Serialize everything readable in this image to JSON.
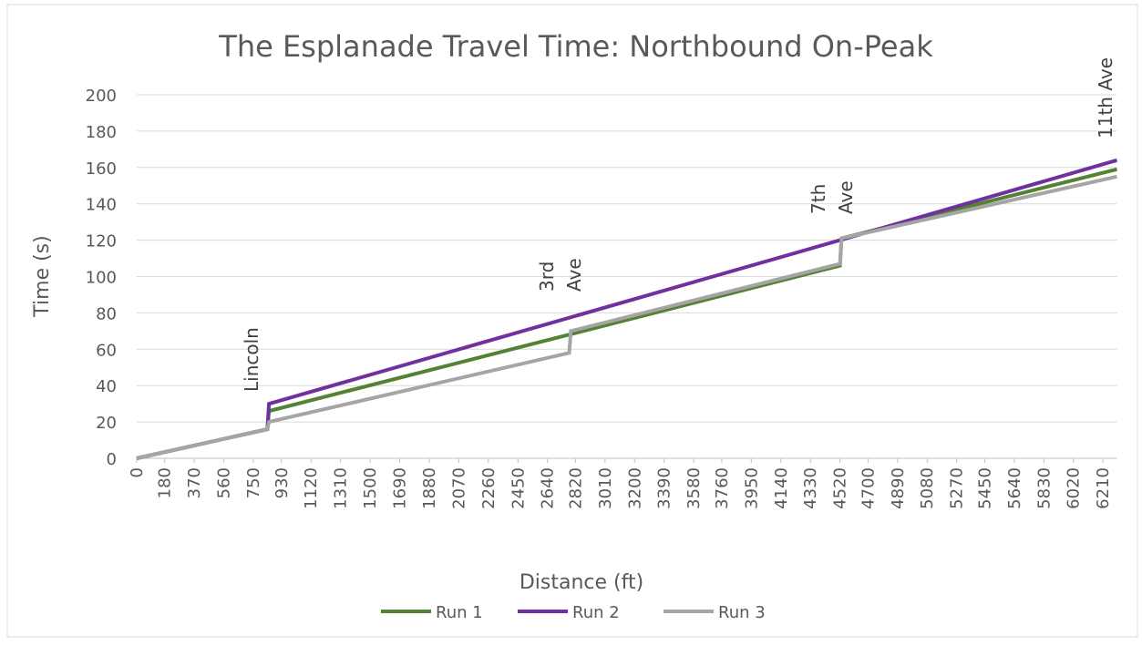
{
  "chart_data": {
    "type": "line",
    "title": "The Esplanade Travel Time: Northbound On-Peak",
    "xlabel": "Distance (ft)",
    "ylabel": "Time (s)",
    "xlim": [
      0,
      6300
    ],
    "ylim": [
      0,
      200
    ],
    "xticks": [
      0,
      180,
      370,
      560,
      750,
      930,
      1120,
      1310,
      1500,
      1690,
      1880,
      2070,
      2260,
      2450,
      2640,
      2820,
      3010,
      3200,
      3390,
      3580,
      3760,
      3950,
      4140,
      4330,
      4520,
      4700,
      4890,
      5080,
      5270,
      5450,
      5640,
      5830,
      6020,
      6210
    ],
    "yticks": [
      0,
      20,
      40,
      60,
      80,
      100,
      120,
      140,
      160,
      180,
      200
    ],
    "grid": true,
    "legend": "bottom",
    "series": [
      {
        "name": "Run 1",
        "color": "#548235",
        "x": [
          0,
          840,
          850,
          4520,
          4530,
          6300
        ],
        "values": [
          0,
          16,
          26,
          106,
          121,
          159
        ]
      },
      {
        "name": "Run 2",
        "color": "#7030a0",
        "x": [
          0,
          840,
          850,
          4520,
          6300
        ],
        "values": [
          0,
          16,
          30,
          120,
          164
        ]
      },
      {
        "name": "Run 3",
        "color": "#a5a5a5",
        "x": [
          0,
          840,
          850,
          2780,
          2790,
          4520,
          4530,
          6300
        ],
        "values": [
          0,
          16,
          20,
          58,
          70,
          107,
          121,
          155
        ]
      }
    ],
    "annotations": [
      {
        "lines": [
          "Lincoln"
        ]
      },
      {
        "lines": [
          "3rd",
          "Ave"
        ]
      },
      {
        "lines": [
          "7th",
          "Ave"
        ]
      },
      {
        "lines": [
          "11th Ave"
        ]
      }
    ]
  }
}
